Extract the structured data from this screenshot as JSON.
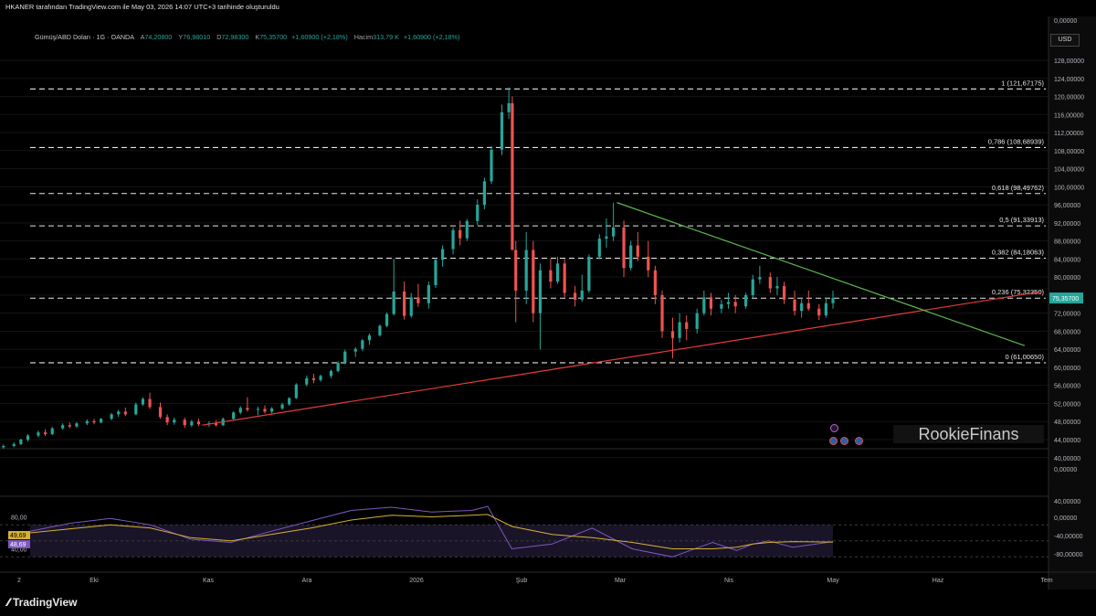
{
  "header": {
    "text": "HKANER tarafından TradingView.com ile May 03, 2026 14:07 UTC+3 tarihinde oluşturuldu"
  },
  "legend": {
    "symbol": "Gümüş/ABD Doları · 1G · OANDA",
    "open_label": "A",
    "open": "74,20800",
    "high_label": "Y",
    "high": "76,98010",
    "low_label": "D",
    "low": "72,98300",
    "close_label": "K",
    "close": "75,35700",
    "change": "+1,60900 (+2,18%)",
    "volume_label": "Hacim",
    "volume": "313,79 K",
    "volume_change": "+1,60900 (+2,18%)"
  },
  "currency_button": "USD",
  "watermark": "RookieFinans",
  "branding": {
    "logo_text": "TradingView"
  },
  "colors": {
    "up": "#26a69a",
    "down": "#ef5350",
    "support": "#e53b3b",
    "resistance": "#59b84a",
    "rsi": "#7e57c2",
    "rsi_ma": "#d6b133"
  },
  "chart_data": {
    "type": "candlestick",
    "price_axis": {
      "range": [
        40,
        130
      ],
      "ticks": [
        "128,00000",
        "124,00000",
        "120,00000",
        "116,00000",
        "112,00000",
        "108,00000",
        "104,00000",
        "100,00000",
        "96,00000",
        "92,00000",
        "88,00000",
        "84,00000",
        "80,00000",
        "76,00000",
        "72,00000",
        "68,00000",
        "64,00000",
        "60,00000",
        "56,00000",
        "52,00000",
        "48,00000",
        "44,00000",
        "40,00000"
      ],
      "top_label": "0,00000",
      "below_label": "0,00000",
      "current_price_label": "75,35700"
    },
    "x_axis": {
      "ticks": [
        "2",
        "Eki",
        "Kas",
        "Ara",
        "2026",
        "Şub",
        "Mar",
        "Nis",
        "May",
        "Haz",
        "Tem"
      ]
    },
    "fibonacci": [
      {
        "label": "1 (121,67175)",
        "value": 121.67175
      },
      {
        "label": "0,786 (108,68939)",
        "value": 108.68939
      },
      {
        "label": "0,618 (98,49762)",
        "value": 98.49762
      },
      {
        "label": "0,5 (91,33913)",
        "value": 91.33913
      },
      {
        "label": "0,382 (84,18063)",
        "value": 84.18063
      },
      {
        "label": "0,236 (75,32350)",
        "value": 75.3235
      },
      {
        "label": "0 (61,00650)",
        "value": 61.0065
      }
    ],
    "trendlines": [
      {
        "name": "support",
        "points": [
          [
            "2025-11-01",
            47.2
          ],
          [
            "2026-06-30",
            76.8
          ]
        ]
      },
      {
        "name": "resistance",
        "points": [
          [
            "2026-02-28",
            96.5
          ],
          [
            "2026-06-25",
            64.8
          ]
        ]
      }
    ],
    "candles": [
      [
        "2025-09-03",
        42.0,
        42.4,
        41.8,
        42.3
      ],
      [
        "2025-09-05",
        42.3,
        42.9,
        42.0,
        42.6
      ],
      [
        "2025-09-08",
        42.6,
        43.4,
        42.3,
        43.0
      ],
      [
        "2025-09-10",
        43.0,
        44.2,
        42.8,
        44.0
      ],
      [
        "2025-09-12",
        44.0,
        45.2,
        43.6,
        44.9
      ],
      [
        "2025-09-15",
        44.9,
        46.0,
        44.5,
        45.6
      ],
      [
        "2025-09-17",
        45.6,
        46.3,
        44.8,
        45.2
      ],
      [
        "2025-09-19",
        45.2,
        46.8,
        45.0,
        46.5
      ],
      [
        "2025-09-22",
        46.5,
        47.6,
        46.2,
        47.2
      ],
      [
        "2025-09-24",
        47.2,
        47.8,
        46.5,
        46.9
      ],
      [
        "2025-09-26",
        46.9,
        47.9,
        46.6,
        47.6
      ],
      [
        "2025-09-29",
        47.6,
        48.5,
        47.2,
        48.1
      ],
      [
        "2025-10-01",
        48.1,
        48.6,
        47.4,
        47.8
      ],
      [
        "2025-10-03",
        47.8,
        48.8,
        47.6,
        48.6
      ],
      [
        "2025-10-06",
        48.6,
        49.9,
        48.3,
        49.6
      ],
      [
        "2025-10-08",
        49.6,
        50.6,
        49.0,
        50.2
      ],
      [
        "2025-10-10",
        50.2,
        51.1,
        49.2,
        49.6
      ],
      [
        "2025-10-13",
        49.6,
        52.2,
        49.4,
        51.8
      ],
      [
        "2025-10-15",
        51.8,
        53.4,
        51.5,
        53.0
      ],
      [
        "2025-10-17",
        53.0,
        54.4,
        50.8,
        51.2
      ],
      [
        "2025-10-20",
        51.2,
        52.2,
        48.6,
        49.0
      ],
      [
        "2025-10-22",
        49.0,
        49.6,
        47.2,
        47.8
      ],
      [
        "2025-10-24",
        47.8,
        48.9,
        47.3,
        48.4
      ],
      [
        "2025-10-27",
        48.4,
        48.9,
        46.6,
        47.2
      ],
      [
        "2025-10-29",
        47.2,
        48.4,
        46.8,
        48.0
      ],
      [
        "2025-10-31",
        48.0,
        48.6,
        47.0,
        47.4
      ],
      [
        "2025-11-03",
        47.4,
        48.1,
        46.8,
        47.6
      ],
      [
        "2025-11-05",
        47.6,
        48.3,
        46.9,
        47.2
      ],
      [
        "2025-11-07",
        47.2,
        48.9,
        47.0,
        48.6
      ],
      [
        "2025-11-10",
        48.6,
        50.3,
        48.4,
        50.0
      ],
      [
        "2025-11-12",
        50.0,
        51.4,
        49.6,
        51.0
      ],
      [
        "2025-11-14",
        51.0,
        53.4,
        50.2,
        50.6
      ],
      [
        "2025-11-17",
        50.6,
        51.3,
        49.4,
        50.8
      ],
      [
        "2025-11-19",
        50.8,
        51.6,
        49.8,
        50.2
      ],
      [
        "2025-11-21",
        50.2,
        51.2,
        49.6,
        50.9
      ],
      [
        "2025-11-24",
        50.9,
        52.2,
        50.6,
        51.8
      ],
      [
        "2025-11-26",
        51.8,
        53.4,
        51.5,
        53.2
      ],
      [
        "2025-11-28",
        53.2,
        56.5,
        53.0,
        56.2
      ],
      [
        "2025-12-01",
        56.2,
        58.2,
        55.8,
        57.6
      ],
      [
        "2025-12-03",
        57.6,
        58.6,
        56.5,
        57.2
      ],
      [
        "2025-12-05",
        57.2,
        58.4,
        56.8,
        58.1
      ],
      [
        "2025-12-08",
        58.1,
        59.5,
        57.6,
        59.2
      ],
      [
        "2025-12-10",
        59.2,
        61.4,
        58.9,
        61.0
      ],
      [
        "2025-12-12",
        61.0,
        63.9,
        60.7,
        63.5
      ],
      [
        "2025-12-15",
        63.5,
        64.5,
        62.3,
        64.1
      ],
      [
        "2025-12-17",
        64.1,
        66.3,
        63.6,
        66.0
      ],
      [
        "2025-12-19",
        66.0,
        67.5,
        65.0,
        67.1
      ],
      [
        "2025-12-22",
        67.1,
        69.5,
        66.8,
        69.2
      ],
      [
        "2025-12-24",
        69.2,
        72.2,
        68.9,
        71.8
      ],
      [
        "2025-12-26",
        71.8,
        84.0,
        71.5,
        76.8
      ],
      [
        "2025-12-29",
        76.8,
        79.0,
        70.6,
        71.4
      ],
      [
        "2025-12-31",
        71.4,
        76.5,
        71.0,
        75.5
      ],
      [
        "2026-01-02",
        75.5,
        78.5,
        73.4,
        74.2
      ],
      [
        "2026-01-05",
        74.2,
        79.0,
        73.0,
        78.2
      ],
      [
        "2026-01-07",
        78.2,
        84.2,
        77.6,
        83.8
      ],
      [
        "2026-01-09",
        83.8,
        87.0,
        82.3,
        86.2
      ],
      [
        "2026-01-12",
        86.2,
        91.0,
        85.0,
        90.4
      ],
      [
        "2026-01-14",
        90.4,
        92.5,
        87.0,
        88.6
      ],
      [
        "2026-01-16",
        88.6,
        92.9,
        88.0,
        92.4
      ],
      [
        "2026-01-19",
        92.4,
        97.2,
        91.5,
        96.0
      ],
      [
        "2026-01-21",
        96.0,
        102.0,
        95.0,
        101.2
      ],
      [
        "2026-01-23",
        101.2,
        109.0,
        100.6,
        108.2
      ],
      [
        "2026-01-26",
        108.2,
        118.2,
        107.0,
        116.5
      ],
      [
        "2026-01-28",
        116.5,
        122.0,
        115.0,
        118.5
      ],
      [
        "2026-01-29",
        118.5,
        120.0,
        86.0,
        86.0
      ],
      [
        "2026-01-30",
        86.0,
        88.0,
        70.0,
        77.0
      ],
      [
        "2026-02-02",
        77.0,
        90.0,
        74.0,
        86.0
      ],
      [
        "2026-02-04",
        86.0,
        88.0,
        70.0,
        72.0
      ],
      [
        "2026-02-06",
        72.0,
        83.0,
        64.0,
        81.5
      ],
      [
        "2026-02-09",
        81.5,
        84.0,
        77.5,
        79.0
      ],
      [
        "2026-02-11",
        79.0,
        84.5,
        78.5,
        83.0
      ],
      [
        "2026-02-13",
        83.0,
        84.0,
        75.5,
        76.5
      ],
      [
        "2026-02-16",
        76.5,
        78.0,
        73.5,
        75.0
      ],
      [
        "2026-02-18",
        75.0,
        80.5,
        74.5,
        77.0
      ],
      [
        "2026-02-20",
        77.0,
        85.0,
        76.5,
        84.5
      ],
      [
        "2026-02-23",
        84.5,
        89.5,
        84.0,
        88.5
      ],
      [
        "2026-02-25",
        88.5,
        93.0,
        86.5,
        89.0
      ],
      [
        "2026-02-27",
        89.0,
        96.5,
        88.0,
        91.0
      ],
      [
        "2026-03-02",
        91.0,
        92.5,
        80.0,
        82.0
      ],
      [
        "2026-03-04",
        82.0,
        88.0,
        81.5,
        87.0
      ],
      [
        "2026-03-06",
        87.0,
        90.0,
        83.5,
        84.5
      ],
      [
        "2026-03-09",
        84.5,
        88.0,
        80.0,
        81.5
      ],
      [
        "2026-03-11",
        81.5,
        82.5,
        74.0,
        76.0
      ],
      [
        "2026-03-13",
        76.0,
        77.0,
        66.5,
        68.0
      ],
      [
        "2026-03-16",
        68.0,
        71.0,
        62.0,
        66.5
      ],
      [
        "2026-03-18",
        66.5,
        72.0,
        65.5,
        70.0
      ],
      [
        "2026-03-20",
        70.0,
        71.5,
        66.0,
        68.5
      ],
      [
        "2026-03-23",
        68.5,
        73.0,
        67.5,
        72.0
      ],
      [
        "2026-03-25",
        72.0,
        77.0,
        71.5,
        75.5
      ],
      [
        "2026-03-27",
        75.5,
        76.5,
        71.5,
        73.0
      ],
      [
        "2026-03-30",
        73.0,
        75.0,
        72.0,
        74.0
      ],
      [
        "2026-04-01",
        74.0,
        76.5,
        73.0,
        74.5
      ],
      [
        "2026-04-03",
        74.5,
        76.0,
        72.0,
        73.5
      ],
      [
        "2026-04-06",
        73.5,
        76.5,
        73.0,
        76.0
      ],
      [
        "2026-04-08",
        76.0,
        80.5,
        75.5,
        79.5
      ],
      [
        "2026-04-10",
        79.5,
        82.5,
        78.5,
        80.0
      ],
      [
        "2026-04-13",
        80.0,
        81.0,
        76.5,
        77.5
      ],
      [
        "2026-04-15",
        77.5,
        80.0,
        76.0,
        78.0
      ],
      [
        "2026-04-17",
        78.0,
        79.0,
        74.0,
        75.0
      ],
      [
        "2026-04-20",
        75.0,
        77.0,
        71.5,
        72.5
      ],
      [
        "2026-04-22",
        72.5,
        75.5,
        71.0,
        74.2
      ],
      [
        "2026-04-24",
        74.2,
        77.0,
        72.5,
        73.0
      ],
      [
        "2026-04-27",
        73.0,
        74.0,
        70.5,
        71.5
      ],
      [
        "2026-04-29",
        71.5,
        75.5,
        71.0,
        74.2
      ],
      [
        "2026-05-01",
        74.2,
        77.0,
        73.0,
        75.36
      ]
    ],
    "rsi_panel": {
      "left_ticks": [
        "80,00",
        "40,00"
      ],
      "current_labels": [
        "49,69",
        "48,69"
      ],
      "right_ticks": [
        "40,00000",
        "0,00000",
        "-40,00000",
        "-80,00000"
      ],
      "rsi": [
        [
          0,
          62
        ],
        [
          0.05,
          72
        ],
        [
          0.1,
          78
        ],
        [
          0.15,
          70
        ],
        [
          0.2,
          52
        ],
        [
          0.25,
          48
        ],
        [
          0.3,
          62
        ],
        [
          0.35,
          75
        ],
        [
          0.4,
          88
        ],
        [
          0.45,
          92
        ],
        [
          0.5,
          86
        ],
        [
          0.55,
          88
        ],
        [
          0.57,
          93
        ],
        [
          0.6,
          40
        ],
        [
          0.65,
          46
        ],
        [
          0.7,
          66
        ],
        [
          0.75,
          40
        ],
        [
          0.8,
          30
        ],
        [
          0.85,
          48
        ],
        [
          0.88,
          38
        ],
        [
          0.9,
          46
        ],
        [
          0.92,
          50
        ],
        [
          0.95,
          42
        ],
        [
          1,
          49
        ]
      ],
      "rsi_ma": [
        [
          0,
          60
        ],
        [
          0.05,
          65
        ],
        [
          0.1,
          70
        ],
        [
          0.15,
          66
        ],
        [
          0.2,
          54
        ],
        [
          0.25,
          50
        ],
        [
          0.3,
          58
        ],
        [
          0.35,
          66
        ],
        [
          0.4,
          76
        ],
        [
          0.45,
          82
        ],
        [
          0.5,
          80
        ],
        [
          0.55,
          82
        ],
        [
          0.57,
          83
        ],
        [
          0.6,
          68
        ],
        [
          0.65,
          58
        ],
        [
          0.7,
          54
        ],
        [
          0.75,
          48
        ],
        [
          0.8,
          40
        ],
        [
          0.85,
          40
        ],
        [
          0.88,
          42
        ],
        [
          0.9,
          46
        ],
        [
          0.92,
          48
        ],
        [
          0.95,
          49
        ],
        [
          1,
          48.5
        ]
      ]
    }
  }
}
